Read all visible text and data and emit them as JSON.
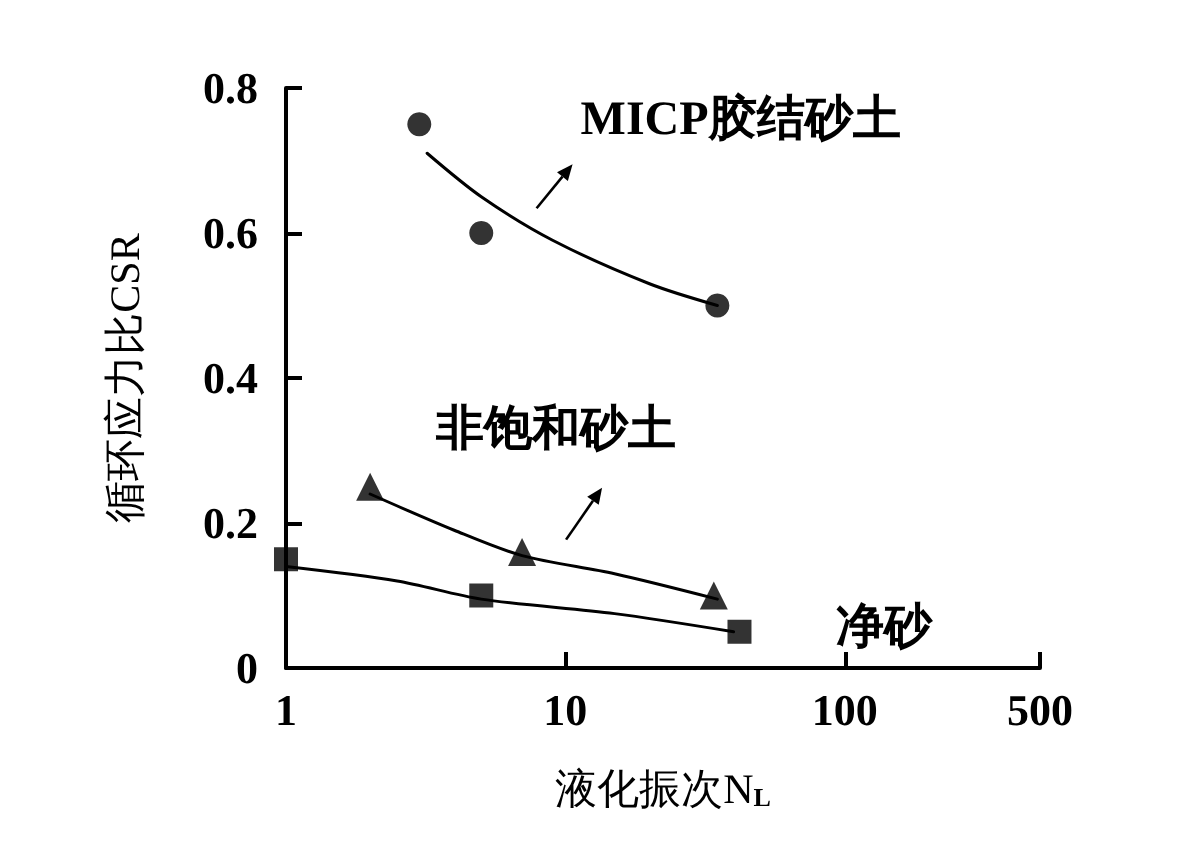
{
  "chart_data": {
    "type": "scatter",
    "xlabel": "液化振次N$_{L}$",
    "ylabel": "循环应力比CSR",
    "log": "x",
    "xlim": [
      1,
      500
    ],
    "xticks": [
      1,
      10,
      100,
      500
    ],
    "ylim": [
      0,
      0.8
    ],
    "yticks": [
      0,
      0.2,
      0.4,
      0.6,
      0.8
    ],
    "grid": false,
    "legend": false,
    "series": [
      {
        "name": "MICP胶结砂土",
        "type": "scatter",
        "marker": "circle",
        "color": "#000000",
        "x": [
          3,
          5,
          35
        ],
        "values": [
          0.75,
          0.6,
          0.5
        ]
      },
      {
        "type": "line",
        "marker": "none",
        "color": "#000000",
        "x": [
          3.2,
          5,
          9,
          20,
          35
        ],
        "values": [
          0.71,
          0.65,
          0.59,
          0.53,
          0.5
        ]
      },
      {
        "name": "非饱和砂土",
        "type": "scatter",
        "marker": "triangle",
        "color": "#000000",
        "x": [
          2,
          7,
          34
        ],
        "values": [
          0.25,
          0.16,
          0.1
        ]
      },
      {
        "type": "line",
        "marker": "none",
        "color": "#000000",
        "x": [
          2,
          4,
          7,
          15,
          35
        ],
        "values": [
          0.24,
          0.19,
          0.155,
          0.13,
          0.095
        ]
      },
      {
        "name": "净砂",
        "type": "scatter",
        "marker": "square",
        "color": "#000000",
        "x": [
          1,
          5,
          42
        ],
        "values": [
          0.15,
          0.1,
          0.05
        ]
      },
      {
        "type": "line",
        "marker": "none",
        "color": "#000000",
        "x": [
          1,
          2.5,
          5,
          15,
          40
        ],
        "values": [
          0.14,
          0.12,
          0.095,
          0.075,
          0.05
        ]
      }
    ]
  }
}
